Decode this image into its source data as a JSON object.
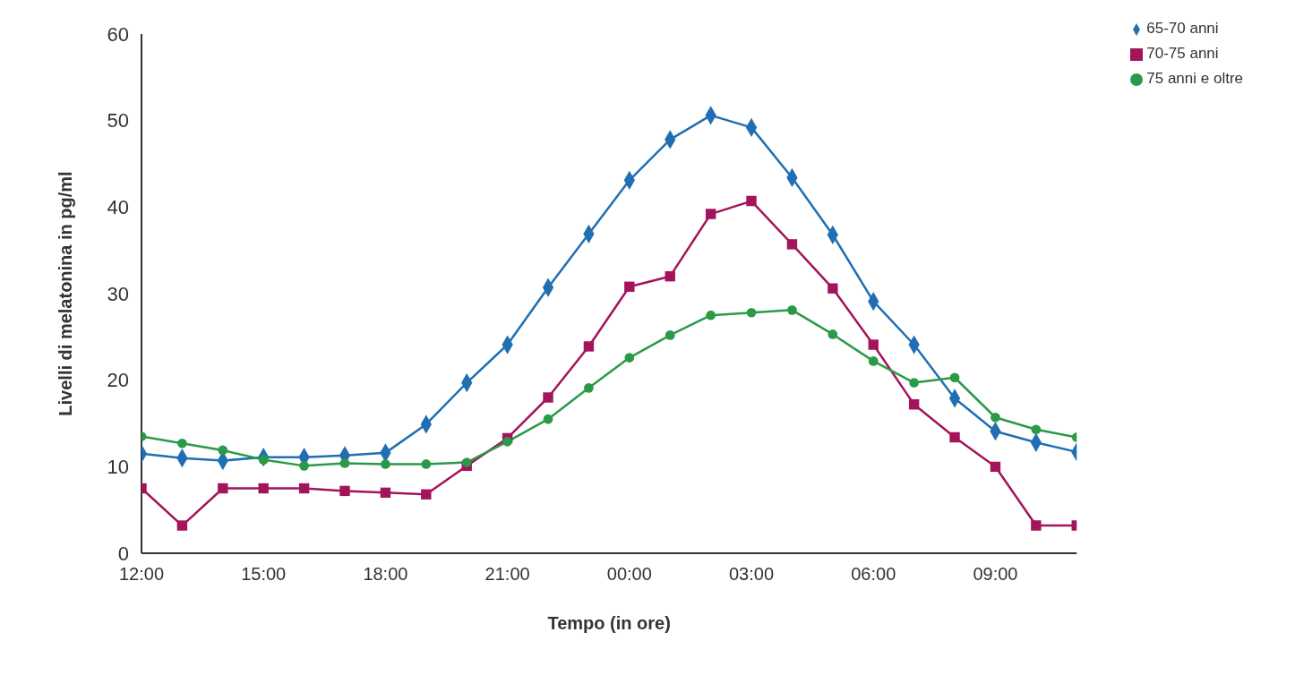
{
  "chart_data": {
    "type": "line",
    "xlabel": "Tempo (in ore)",
    "ylabel": "Livelli di melatonina in pg/ml",
    "categories": [
      "12:00",
      null,
      null,
      "15:00",
      null,
      null,
      "18:00",
      null,
      null,
      "21:00",
      null,
      null,
      "00:00",
      null,
      null,
      "03:00",
      null,
      null,
      "06:00",
      null,
      null,
      "09:00",
      null,
      null
    ],
    "ylim": [
      0,
      60
    ],
    "yticks": [
      0,
      10,
      20,
      30,
      40,
      50,
      60
    ],
    "grid": false,
    "legend": "top right",
    "series": [
      {
        "name": "65-70 anni",
        "color": "#1f6fb2",
        "marker": "diamond",
        "values": [
          11.5,
          11.0,
          10.7,
          11.1,
          11.1,
          11.3,
          11.6,
          14.9,
          19.7,
          24.1,
          30.7,
          36.9,
          43.1,
          47.8,
          50.6,
          49.2,
          43.4,
          36.8,
          29.1,
          24.1,
          17.9,
          14.1,
          12.8,
          11.7
        ]
      },
      {
        "name": "70-75 anni",
        "color": "#a3145a",
        "marker": "square",
        "values": [
          7.5,
          3.2,
          7.5,
          7.5,
          7.5,
          7.2,
          7.0,
          6.8,
          10.1,
          13.3,
          18.0,
          23.9,
          30.8,
          32.0,
          39.2,
          40.7,
          35.7,
          30.6,
          24.1,
          17.2,
          13.4,
          10.0,
          3.2,
          3.2
        ]
      },
      {
        "name": "75 anni e oltre",
        "color": "#2a9a48",
        "marker": "circle",
        "values": [
          13.5,
          12.7,
          11.9,
          10.8,
          10.1,
          10.4,
          10.3,
          10.3,
          10.5,
          12.9,
          15.5,
          19.1,
          22.6,
          25.2,
          27.5,
          27.8,
          28.1,
          25.3,
          22.2,
          19.7,
          20.3,
          15.7,
          14.3,
          13.4
        ]
      }
    ]
  }
}
